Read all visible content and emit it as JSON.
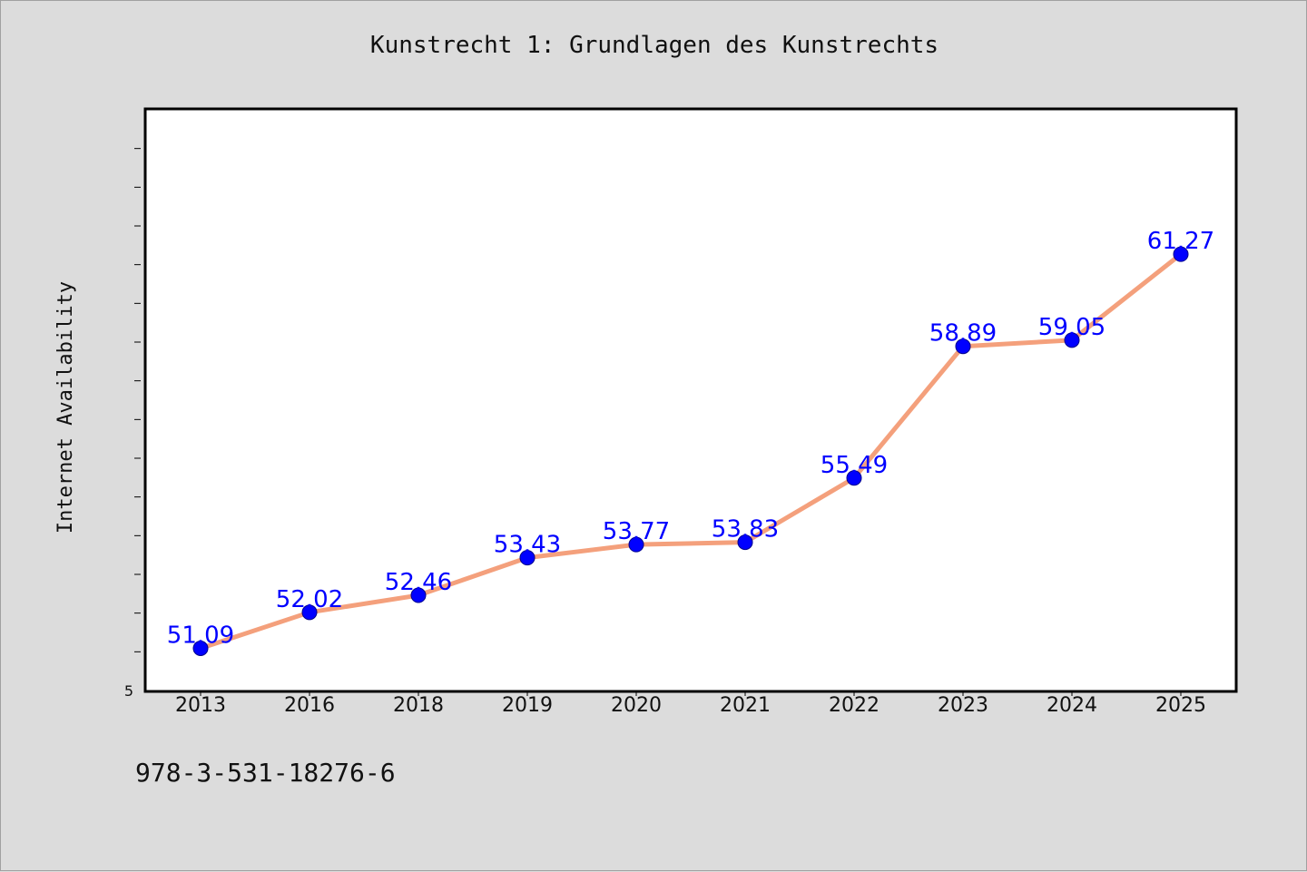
{
  "title": "Kunstrecht 1: Grundlagen des Kunstrechts",
  "footer_code": "978-3-531-18276-6",
  "chart_data": {
    "type": "line",
    "title": "Kunstrecht 1: Grundlagen des Kunstrechts",
    "xlabel": "",
    "ylabel": "Internet Availability",
    "categories": [
      "2013",
      "2016",
      "2018",
      "2019",
      "2020",
      "2021",
      "2022",
      "2023",
      "2024",
      "2025"
    ],
    "series": [
      {
        "values": [
          51.09,
          52.02,
          52.46,
          53.43,
          53.77,
          53.83,
          55.49,
          58.89,
          59.05,
          61.27
        ],
        "labels": [
          "51.09",
          "52.02",
          "52.46",
          "53.43",
          "53.77",
          "53.83",
          "55.49",
          "58.89",
          "59.05",
          "61.27"
        ]
      }
    ],
    "ylim": [
      50,
      65
    ],
    "y_tick_labels": [
      "5"
    ],
    "grid": false,
    "colors": {
      "line": "#f4a07c",
      "marker": "#0000ff",
      "label": "#0000ff",
      "frame": "#000000",
      "background": "#dcdcdc",
      "plot_background": "#ffffff"
    }
  }
}
